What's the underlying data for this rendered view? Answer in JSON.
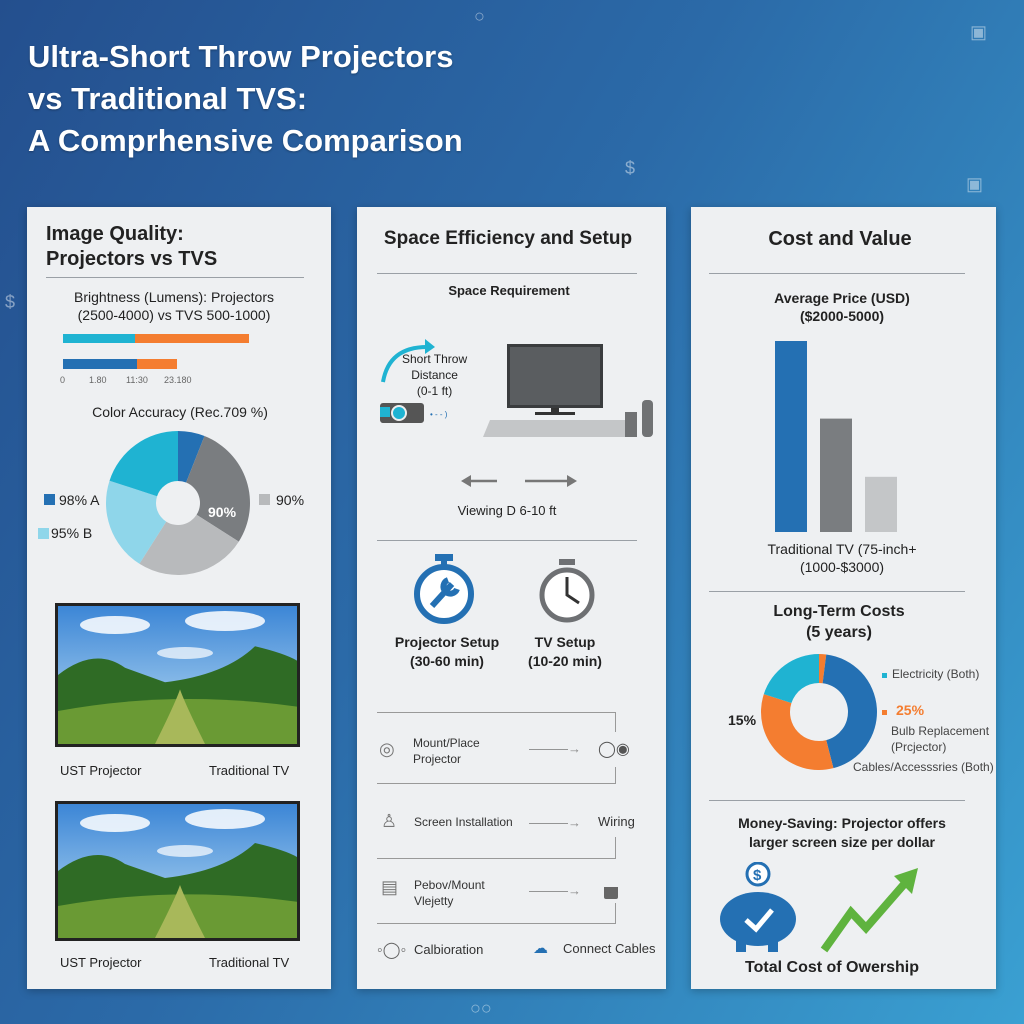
{
  "title": {
    "line1": "Ultra-Short Throw Projectors",
    "line2": "vs Traditional TVS:",
    "line3": "A Comprhensive Comparison"
  },
  "colors": {
    "blue": "#2470b3",
    "cyan": "#1fb3d2",
    "orange": "#f47d30",
    "gray": "#7a7d80",
    "lightgray": "#b8babc",
    "lightcyan": "#8fd6ea",
    "green": "#5fb33e"
  },
  "image_quality": {
    "title1": "Image Quality:",
    "title2": "Projectors vs TVS",
    "brightness_title1": "Brightness (Lumens): Projectors",
    "brightness_title2": "(2500-4000) vs TVS  500-1000)",
    "ticks": [
      "0",
      "1.80",
      "11:30",
      "23.180"
    ],
    "color_title": "Color Accuracy (Rec.709 %)",
    "legend_a": "98% A",
    "legend_b": "95% B",
    "legend_c": "90%",
    "inner_label": "90%",
    "image1_labels": [
      "UST Projector",
      "Traditional TV"
    ],
    "image2_labels": [
      "UST Projector",
      "Traditional TV"
    ]
  },
  "space": {
    "title": "Space Efficiency and Setup",
    "subtitle": "Space Requirement",
    "throw1": "Short Throw",
    "throw2": "Distance",
    "throw3": "(0-1 ft)",
    "viewing": "Viewing D 6-10 ft",
    "projector_setup1": "Projector Setup",
    "projector_setup2": "(30-60 min)",
    "tv_setup1": "TV Setup",
    "tv_setup2": "(10-20 min)",
    "steps": [
      {
        "label1": "Mount/Place",
        "label2": "Projector",
        "icon": "stopwatch-icon",
        "end_icon": "projector-icon"
      },
      {
        "label1": "Screen Installation",
        "label2": "",
        "icon": "stack-icon",
        "end": "Wiring"
      },
      {
        "label1": "Pebov/Mount",
        "label2": "Vlejetty",
        "icon": "document-icon",
        "end_icon": "bucket-icon"
      }
    ],
    "calibration": "Calbioration",
    "connect": "Connect Cables"
  },
  "cost": {
    "title": "Cost and Value",
    "price_title1": "Average Price (USD)",
    "price_title2": "($2000-5000)",
    "tv_label1": "Traditional TV (75-inch+",
    "tv_label2": "(1000-$3000)",
    "long_title1": "Long-Term Costs",
    "long_title2": "(5 years)",
    "legend_electricity": "Electricity (Both)",
    "pct25": "25%",
    "bulb1": "Bulb Replacement",
    "bulb2": "(Prcjector)",
    "cables": "Cables/Accesssries (Both)",
    "pct15": "15%",
    "money1": "Money-Saving: Projector offers",
    "money2": "larger screen size per dollar",
    "total": "Total Cost of Owership"
  },
  "chart_data": [
    {
      "type": "bar",
      "orientation": "horizontal",
      "title": "Brightness (Lumens): Projectors (2500-4000) vs TVS  500-1000)",
      "tick_labels": [
        "0",
        "1.80",
        "11:30",
        "23.180"
      ],
      "series": [
        {
          "values": [
            {
              "segment": "cyan",
              "share": 0.39
            },
            {
              "segment": "orange",
              "share": 0.61
            }
          ]
        },
        {
          "values": [
            {
              "segment": "blue",
              "share": 0.65
            },
            {
              "segment": "orange",
              "share": 0.35
            }
          ]
        }
      ],
      "bar_lengths_relative": [
        1.0,
        0.61
      ]
    },
    {
      "type": "pie",
      "title": "Color Accuracy (Rec.709 %)",
      "donut": true,
      "slices": [
        {
          "color": "#2470b3",
          "value": 6
        },
        {
          "color": "#7a7d80",
          "value": 28
        },
        {
          "color": "#b8babc",
          "value": 25
        },
        {
          "color": "#8fd6ea",
          "value": 21
        },
        {
          "color": "#1fb3d2",
          "value": 20
        }
      ]
    },
    {
      "type": "bar",
      "title": "Average Price (USD) ($2000-5000)",
      "values": [
        5000,
        3000,
        1500
      ],
      "colors": [
        "#2470b3",
        "#7a7d80",
        "#c4c6c8"
      ]
    },
    {
      "type": "pie",
      "title": "Long-Term Costs (5 years)",
      "donut": true,
      "slices": [
        {
          "color": "#f47d30",
          "value": 2
        },
        {
          "color": "#2470b3",
          "value": 44
        },
        {
          "color": "#f47d30",
          "value": 34
        },
        {
          "color": "#1fb3d2",
          "value": 20
        }
      ]
    }
  ]
}
